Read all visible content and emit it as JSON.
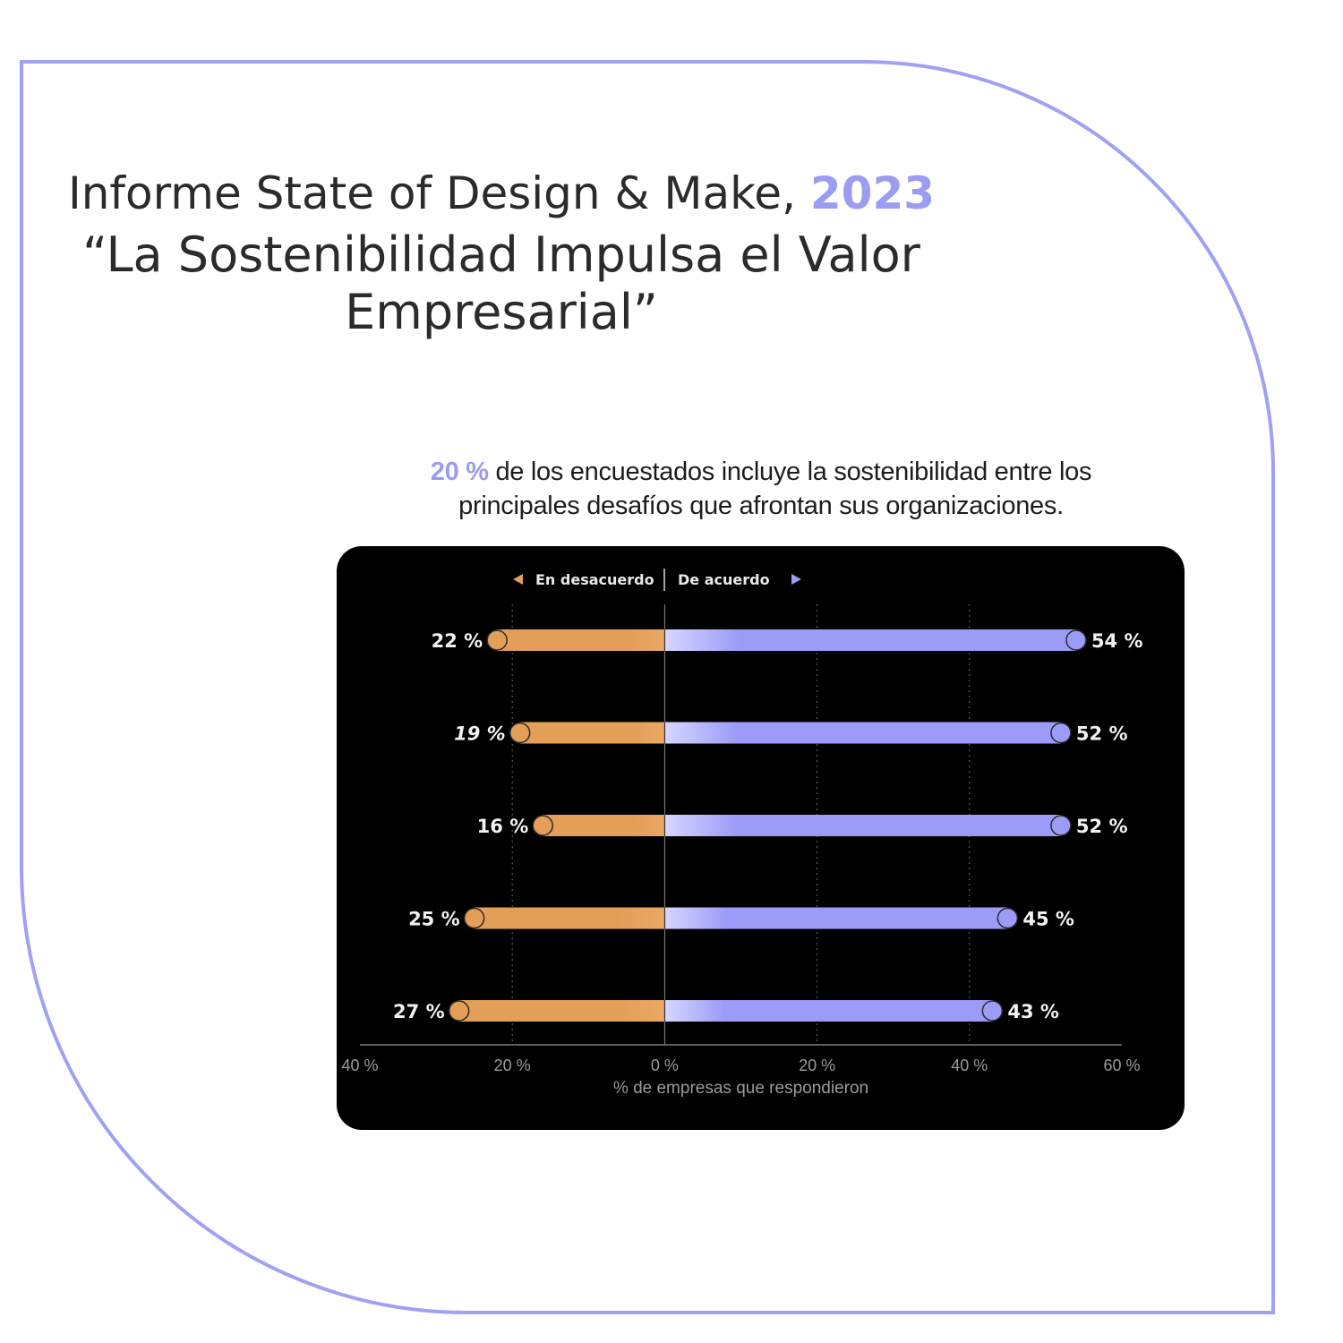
{
  "title": {
    "line1_prefix": "Informe State of Design & Make, ",
    "line1_year": "2023",
    "line2": "“La Sostenibilidad Impulsa el Valor",
    "line3": "Empresarial”"
  },
  "subtitle": {
    "highlight": "20 %",
    "line1_rest": " de los encuestados incluye la sostenibilidad entre los",
    "line2": "principales desafíos que afrontan sus organizaciones."
  },
  "colors": {
    "accent": "#9b9cf2",
    "disagree": "#e39e58",
    "agree": "#9c9cf8",
    "panel": "#000000",
    "frame": "#a0a0f5"
  },
  "legend": {
    "left_icon": "triangle-left-icon",
    "left_label": "En desacuerdo",
    "right_label": "De acuerdo",
    "right_icon": "triangle-right-icon"
  },
  "chart_data": {
    "type": "bar",
    "orientation": "horizontal-diverging",
    "categories": [
      "",
      "",
      "",
      "",
      ""
    ],
    "series": [
      {
        "name": "En desacuerdo",
        "values": [
          22,
          19,
          16,
          25,
          27
        ],
        "labels": [
          "22 %",
          "19 %",
          "16 %",
          "25 %",
          "27 %"
        ]
      },
      {
        "name": "De acuerdo",
        "values": [
          54,
          52,
          52,
          45,
          43
        ],
        "labels": [
          "54 %",
          "52 %",
          "52 %",
          "45 %",
          "43 %"
        ]
      }
    ],
    "xlabel": "% de empresas que respondieron",
    "xlim": [
      -40,
      60
    ],
    "xticks": [
      -40,
      -20,
      0,
      20,
      40,
      60
    ],
    "xtick_labels": [
      "40 %",
      "20 %",
      "0 %",
      "20 %",
      "40 %",
      "60 %"
    ],
    "grid": "vertical dotted",
    "legend_position": "top-center"
  }
}
